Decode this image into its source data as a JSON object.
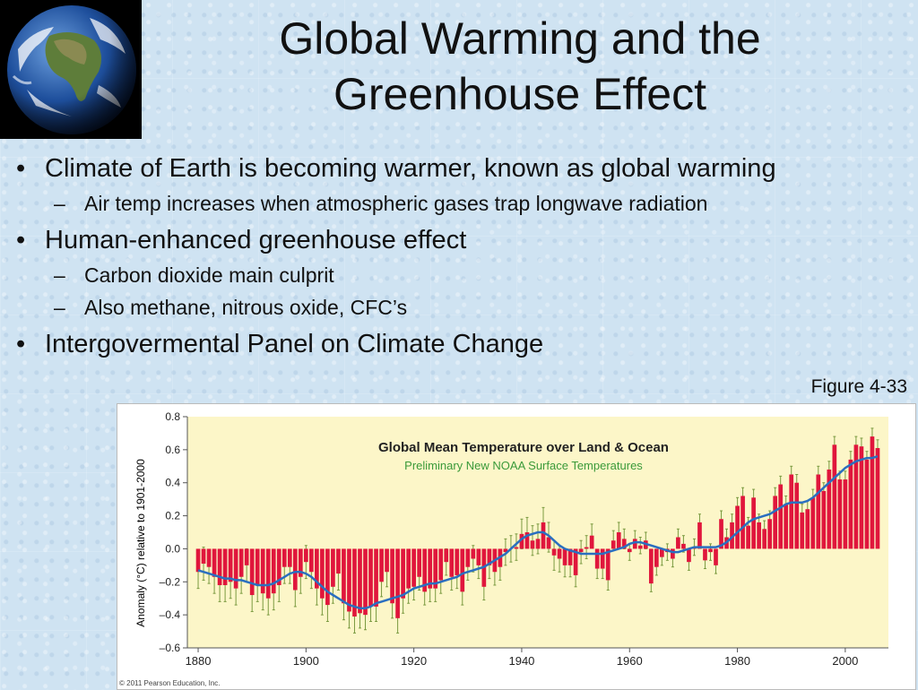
{
  "slide": {
    "title": "Global Warming and the Greenhouse Effect",
    "bullets": [
      {
        "text": "Climate of Earth is becoming warmer, known as global warming",
        "subs": [
          "Air temp increases when atmospheric gases trap longwave radiation"
        ]
      },
      {
        "text": "Human-enhanced greenhouse effect",
        "subs": [
          "Carbon dioxide main culprit",
          "Also methane, nitrous oxide, CFC’s"
        ]
      },
      {
        "text": "Intergovermental Panel on Climate Change",
        "subs": []
      }
    ],
    "figure_ref": "Figure 4-33",
    "bullet_glyph": "•",
    "dash_glyph": "–"
  },
  "chart_data": {
    "type": "bar",
    "title": "Global Mean Temperature over Land & Ocean",
    "subtitle": "Preliminary New NOAA Surface Temperatures",
    "ylabel": "Anomaly (°C) relative to 1901-2000",
    "xlabel": "",
    "ylim": [
      -0.6,
      0.8
    ],
    "xlim": [
      1878,
      2008
    ],
    "yticks": [
      0.8,
      0.6,
      0.4,
      0.2,
      0.0,
      -0.2,
      -0.4,
      -0.6
    ],
    "ytick_labels": [
      "0.8",
      "0.6",
      "0.4",
      "0.2",
      "0.0",
      "–0.2",
      "–0.4",
      "–0.6"
    ],
    "xticks": [
      1880,
      1900,
      1920,
      1940,
      1960,
      1980,
      2000
    ],
    "xtick_labels": [
      "1880",
      "1900",
      "1920",
      "1940",
      "1960",
      "1980",
      "2000"
    ],
    "grid": false,
    "copyright": "© 2011 Pearson Education, Inc.",
    "colors": {
      "bar": "#e0163c",
      "line": "#2a6fc0",
      "error": "#7a9a40",
      "plot_bg": "#fcf6c8",
      "title": "#222222",
      "subtitle": "#3a9a3a"
    },
    "years": [
      1880,
      1881,
      1882,
      1883,
      1884,
      1885,
      1886,
      1887,
      1888,
      1889,
      1890,
      1891,
      1892,
      1893,
      1894,
      1895,
      1896,
      1897,
      1898,
      1899,
      1900,
      1901,
      1902,
      1903,
      1904,
      1905,
      1906,
      1907,
      1908,
      1909,
      1910,
      1911,
      1912,
      1913,
      1914,
      1915,
      1916,
      1917,
      1918,
      1919,
      1920,
      1921,
      1922,
      1923,
      1924,
      1925,
      1926,
      1927,
      1928,
      1929,
      1930,
      1931,
      1932,
      1933,
      1934,
      1935,
      1936,
      1937,
      1938,
      1939,
      1940,
      1941,
      1942,
      1943,
      1944,
      1945,
      1946,
      1947,
      1948,
      1949,
      1950,
      1951,
      1952,
      1953,
      1954,
      1955,
      1956,
      1957,
      1958,
      1959,
      1960,
      1961,
      1962,
      1963,
      1964,
      1965,
      1966,
      1967,
      1968,
      1969,
      1970,
      1971,
      1972,
      1973,
      1974,
      1975,
      1976,
      1977,
      1978,
      1979,
      1980,
      1981,
      1982,
      1983,
      1984,
      1985,
      1986,
      1987,
      1988,
      1989,
      1990,
      1991,
      1992,
      1993,
      1994,
      1995,
      1996,
      1997,
      1998,
      1999,
      2000,
      2001,
      2002,
      2003,
      2004,
      2005,
      2006
    ],
    "values": [
      -0.14,
      -0.09,
      -0.11,
      -0.17,
      -0.22,
      -0.22,
      -0.2,
      -0.24,
      -0.17,
      -0.1,
      -0.28,
      -0.22,
      -0.27,
      -0.3,
      -0.27,
      -0.22,
      -0.11,
      -0.11,
      -0.25,
      -0.17,
      -0.08,
      -0.14,
      -0.24,
      -0.3,
      -0.34,
      -0.23,
      -0.15,
      -0.33,
      -0.38,
      -0.41,
      -0.39,
      -0.4,
      -0.35,
      -0.35,
      -0.2,
      -0.14,
      -0.33,
      -0.42,
      -0.3,
      -0.24,
      -0.23,
      -0.17,
      -0.26,
      -0.24,
      -0.24,
      -0.19,
      -0.08,
      -0.17,
      -0.16,
      -0.26,
      -0.11,
      -0.06,
      -0.1,
      -0.23,
      -0.1,
      -0.14,
      -0.11,
      -0.02,
      0.0,
      0.01,
      0.09,
      0.1,
      0.05,
      0.06,
      0.16,
      0.07,
      -0.04,
      -0.06,
      -0.1,
      -0.1,
      -0.16,
      -0.02,
      0.01,
      0.08,
      -0.12,
      -0.12,
      -0.19,
      0.05,
      0.1,
      0.06,
      -0.02,
      0.06,
      0.02,
      0.05,
      -0.21,
      -0.11,
      -0.05,
      -0.02,
      -0.06,
      0.07,
      0.03,
      -0.08,
      0.01,
      0.16,
      -0.07,
      -0.02,
      -0.1,
      0.18,
      0.07,
      0.16,
      0.26,
      0.32,
      0.14,
      0.31,
      0.16,
      0.12,
      0.18,
      0.32,
      0.39,
      0.27,
      0.45,
      0.4,
      0.22,
      0.24,
      0.31,
      0.45,
      0.35,
      0.48,
      0.63,
      0.42,
      0.42,
      0.54,
      0.63,
      0.62,
      0.54,
      0.68,
      0.61
    ],
    "errors": [
      0.1,
      0.1,
      0.1,
      0.1,
      0.1,
      0.1,
      0.1,
      0.1,
      0.1,
      0.1,
      0.1,
      0.1,
      0.1,
      0.1,
      0.1,
      0.1,
      0.1,
      0.1,
      0.1,
      0.1,
      0.1,
      0.1,
      0.1,
      0.1,
      0.1,
      0.1,
      0.1,
      0.1,
      0.1,
      0.1,
      0.09,
      0.09,
      0.09,
      0.09,
      0.09,
      0.09,
      0.09,
      0.09,
      0.09,
      0.09,
      0.08,
      0.08,
      0.08,
      0.08,
      0.08,
      0.08,
      0.08,
      0.08,
      0.08,
      0.08,
      0.08,
      0.08,
      0.08,
      0.08,
      0.08,
      0.08,
      0.08,
      0.08,
      0.08,
      0.08,
      0.09,
      0.09,
      0.09,
      0.09,
      0.09,
      0.09,
      0.09,
      0.08,
      0.07,
      0.07,
      0.07,
      0.07,
      0.07,
      0.07,
      0.06,
      0.06,
      0.06,
      0.06,
      0.06,
      0.06,
      0.05,
      0.05,
      0.05,
      0.05,
      0.05,
      0.05,
      0.05,
      0.05,
      0.05,
      0.05,
      0.05,
      0.05,
      0.05,
      0.05,
      0.05,
      0.05,
      0.05,
      0.05,
      0.05,
      0.05,
      0.05,
      0.05,
      0.05,
      0.05,
      0.05,
      0.05,
      0.05,
      0.05,
      0.05,
      0.05,
      0.05,
      0.05,
      0.05,
      0.05,
      0.05,
      0.05,
      0.05,
      0.05,
      0.05,
      0.05,
      0.05,
      0.05,
      0.05,
      0.05,
      0.05,
      0.05,
      0.05
    ],
    "smoothed": [
      -0.13,
      -0.14,
      -0.15,
      -0.16,
      -0.17,
      -0.18,
      -0.18,
      -0.19,
      -0.19,
      -0.2,
      -0.21,
      -0.22,
      -0.22,
      -0.22,
      -0.21,
      -0.19,
      -0.17,
      -0.15,
      -0.14,
      -0.14,
      -0.15,
      -0.17,
      -0.2,
      -0.23,
      -0.26,
      -0.28,
      -0.3,
      -0.32,
      -0.34,
      -0.35,
      -0.36,
      -0.36,
      -0.35,
      -0.33,
      -0.32,
      -0.31,
      -0.3,
      -0.29,
      -0.28,
      -0.26,
      -0.24,
      -0.23,
      -0.22,
      -0.21,
      -0.21,
      -0.2,
      -0.19,
      -0.18,
      -0.17,
      -0.15,
      -0.14,
      -0.13,
      -0.12,
      -0.11,
      -0.09,
      -0.07,
      -0.05,
      -0.03,
      0.0,
      0.03,
      0.06,
      0.08,
      0.09,
      0.1,
      0.1,
      0.08,
      0.05,
      0.02,
      0.0,
      -0.01,
      -0.02,
      -0.03,
      -0.03,
      -0.03,
      -0.03,
      -0.03,
      -0.02,
      -0.01,
      0.0,
      0.01,
      0.03,
      0.04,
      0.04,
      0.03,
      0.02,
      0.01,
      0.0,
      -0.01,
      -0.02,
      -0.02,
      -0.01,
      0.0,
      0.01,
      0.01,
      0.01,
      0.01,
      0.01,
      0.02,
      0.04,
      0.07,
      0.1,
      0.13,
      0.16,
      0.18,
      0.19,
      0.2,
      0.21,
      0.23,
      0.25,
      0.27,
      0.28,
      0.28,
      0.28,
      0.29,
      0.31,
      0.34,
      0.37,
      0.4,
      0.43,
      0.46,
      0.49,
      0.51,
      0.53,
      0.54,
      0.55,
      0.55,
      0.56
    ]
  }
}
